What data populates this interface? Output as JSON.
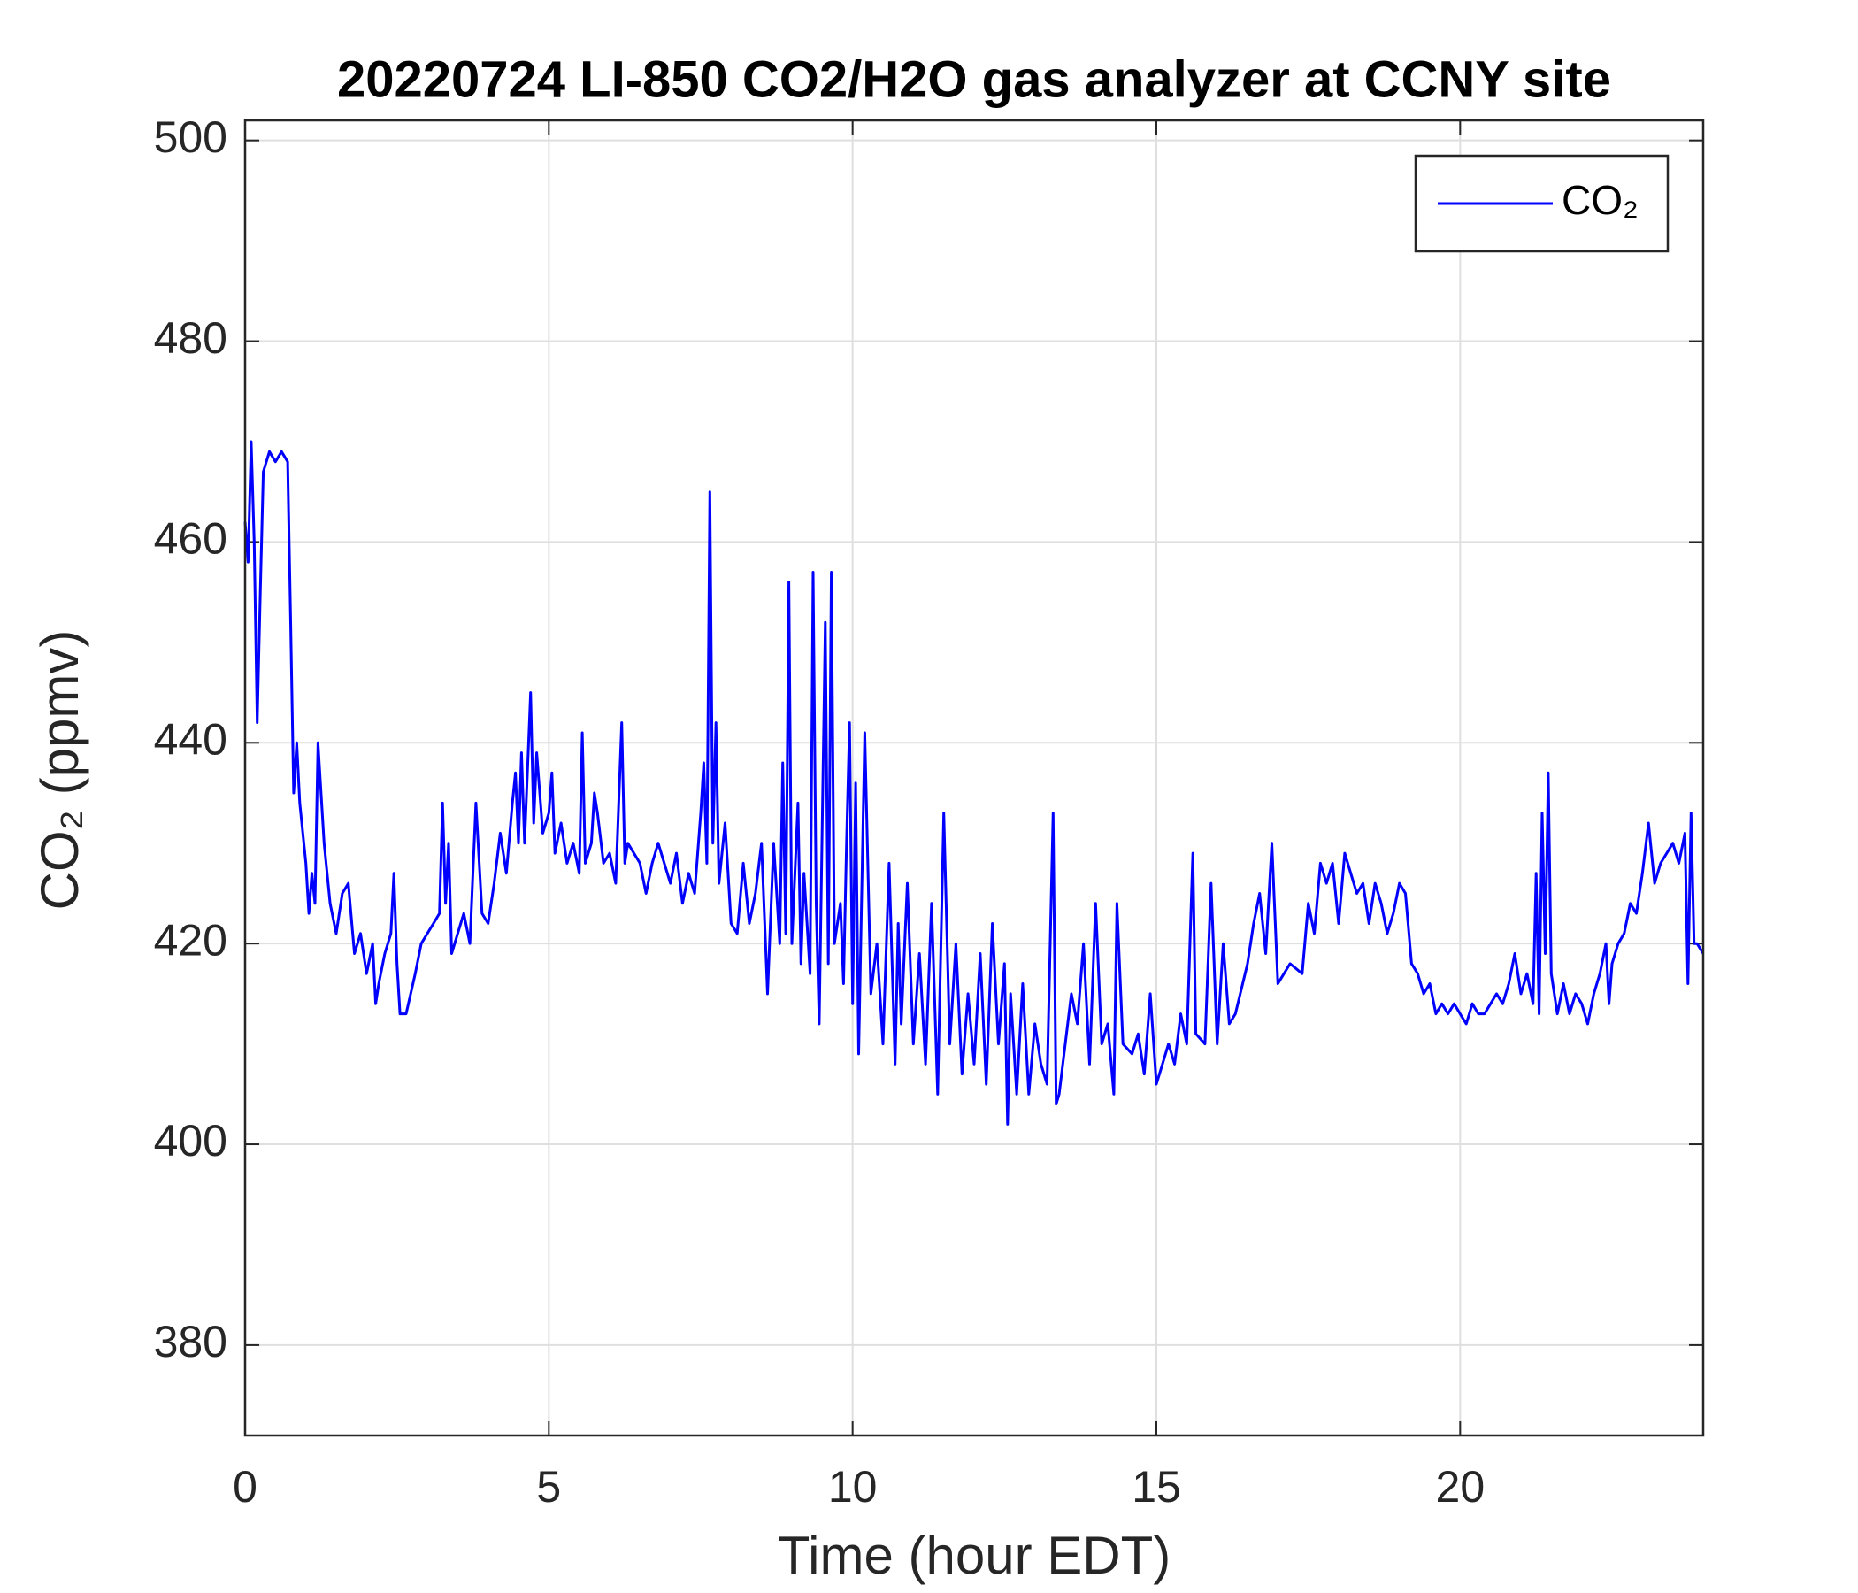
{
  "chart_data": {
    "type": "line",
    "title": "20220724 LI-850 CO2/H2O gas analyzer at CCNY site",
    "xlabel": "Time (hour EDT)",
    "ylabel": "CO₂ (ppmv)",
    "xlim": [
      0,
      24
    ],
    "ylim": [
      371,
      502
    ],
    "xticks": [
      0,
      5,
      10,
      15,
      20
    ],
    "yticks": [
      380,
      400,
      420,
      440,
      460,
      480,
      500
    ],
    "grid": true,
    "legend": "northeast",
    "x": [
      0,
      0.05,
      0.1,
      0.15,
      0.2,
      0.25,
      0.3,
      0.4,
      0.5,
      0.6,
      0.7,
      0.75,
      0.8,
      0.85,
      0.9,
      1.0,
      1.05,
      1.1,
      1.15,
      1.2,
      1.3,
      1.4,
      1.5,
      1.6,
      1.7,
      1.8,
      1.9,
      2.0,
      2.1,
      2.15,
      2.2,
      2.3,
      2.4,
      2.45,
      2.5,
      2.55,
      2.65,
      2.8,
      2.9,
      3.0,
      3.1,
      3.2,
      3.25,
      3.3,
      3.35,
      3.4,
      3.5,
      3.6,
      3.7,
      3.8,
      3.9,
      4.0,
      4.1,
      4.2,
      4.3,
      4.4,
      4.45,
      4.5,
      4.55,
      4.6,
      4.7,
      4.75,
      4.8,
      4.9,
      5.0,
      5.05,
      5.1,
      5.2,
      5.3,
      5.4,
      5.5,
      5.55,
      5.6,
      5.7,
      5.75,
      5.8,
      5.9,
      6.0,
      6.1,
      6.2,
      6.25,
      6.3,
      6.5,
      6.6,
      6.7,
      6.8,
      6.9,
      7.0,
      7.1,
      7.2,
      7.3,
      7.4,
      7.5,
      7.55,
      7.6,
      7.65,
      7.7,
      7.75,
      7.8,
      7.9,
      8.0,
      8.1,
      8.2,
      8.3,
      8.4,
      8.5,
      8.6,
      8.7,
      8.8,
      8.85,
      8.9,
      8.95,
      9.0,
      9.1,
      9.15,
      9.2,
      9.3,
      9.35,
      9.4,
      9.45,
      9.55,
      9.6,
      9.65,
      9.7,
      9.8,
      9.85,
      9.9,
      9.95,
      10.0,
      10.05,
      10.1,
      10.2,
      10.3,
      10.4,
      10.5,
      10.6,
      10.7,
      10.75,
      10.8,
      10.9,
      11.0,
      11.1,
      11.2,
      11.3,
      11.4,
      11.5,
      11.6,
      11.7,
      11.8,
      11.9,
      12.0,
      12.1,
      12.2,
      12.3,
      12.4,
      12.5,
      12.55,
      12.6,
      12.7,
      12.8,
      12.9,
      13.0,
      13.1,
      13.2,
      13.3,
      13.35,
      13.4,
      13.5,
      13.6,
      13.7,
      13.8,
      13.9,
      14.0,
      14.1,
      14.2,
      14.3,
      14.35,
      14.45,
      14.6,
      14.7,
      14.8,
      14.9,
      15.0,
      15.1,
      15.2,
      15.3,
      15.4,
      15.5,
      15.6,
      15.65,
      15.8,
      15.9,
      16.0,
      16.1,
      16.2,
      16.3,
      16.5,
      16.6,
      16.7,
      16.8,
      16.9,
      17.0,
      17.1,
      17.2,
      17.4,
      17.5,
      17.6,
      17.7,
      17.8,
      17.9,
      18.0,
      18.1,
      18.2,
      18.3,
      18.4,
      18.5,
      18.6,
      18.7,
      18.8,
      18.9,
      19.0,
      19.1,
      19.2,
      19.3,
      19.4,
      19.5,
      19.6,
      19.7,
      19.8,
      19.9,
      20.0,
      20.1,
      20.2,
      20.3,
      20.4,
      20.5,
      20.6,
      20.7,
      20.8,
      20.9,
      21.0,
      21.1,
      21.2,
      21.25,
      21.3,
      21.35,
      21.4,
      21.45,
      21.5,
      21.6,
      21.7,
      21.8,
      21.9,
      22.0,
      22.1,
      22.2,
      22.3,
      22.4,
      22.45,
      22.5,
      22.6,
      22.7,
      22.8,
      22.9,
      23.0,
      23.1,
      23.2,
      23.3,
      23.4,
      23.5,
      23.6,
      23.7,
      23.75,
      23.8,
      23.85,
      23.9,
      24.0
    ],
    "series": [
      {
        "name": "CO₂",
        "color": "#0000ff",
        "values": [
          462,
          458,
          470,
          460,
          442,
          455,
          467,
          469,
          468,
          469,
          468,
          452,
          435,
          440,
          434,
          428,
          423,
          427,
          424,
          440,
          430,
          424,
          421,
          425,
          426,
          419,
          421,
          417,
          420,
          414,
          416,
          419,
          421,
          427,
          418,
          413,
          413,
          417,
          420,
          421,
          422,
          423,
          434,
          424,
          430,
          419,
          421,
          423,
          420,
          434,
          423,
          422,
          426,
          431,
          427,
          434,
          437,
          430,
          439,
          430,
          445,
          432,
          439,
          431,
          433,
          437,
          429,
          432,
          428,
          430,
          427,
          441,
          428,
          430,
          435,
          433,
          428,
          429,
          426,
          442,
          428,
          430,
          428,
          425,
          428,
          430,
          428,
          426,
          429,
          424,
          427,
          425,
          433,
          438,
          428,
          465,
          430,
          442,
          426,
          432,
          422,
          421,
          428,
          422,
          425,
          430,
          415,
          430,
          420,
          438,
          421,
          456,
          420,
          434,
          418,
          427,
          417,
          457,
          424,
          412,
          452,
          418,
          457,
          420,
          424,
          416,
          430,
          442,
          414,
          436,
          409,
          441,
          415,
          420,
          410,
          428,
          408,
          422,
          412,
          426,
          410,
          419,
          408,
          424,
          405,
          433,
          410,
          420,
          407,
          415,
          408,
          419,
          406,
          422,
          410,
          418,
          402,
          415,
          405,
          416,
          405,
          412,
          408,
          406,
          433,
          404,
          405,
          410,
          415,
          412,
          420,
          408,
          424,
          410,
          412,
          405,
          424,
          410,
          409,
          411,
          407,
          415,
          406,
          408,
          410,
          408,
          413,
          410,
          429,
          411,
          410,
          426,
          410,
          420,
          412,
          413,
          418,
          422,
          425,
          419,
          430,
          416,
          417,
          418,
          417,
          424,
          421,
          428,
          426,
          428,
          422,
          429,
          427,
          425,
          426,
          422,
          426,
          424,
          421,
          423,
          426,
          425,
          418,
          417,
          415,
          416,
          413,
          414,
          413,
          414,
          413,
          412,
          414,
          413,
          413,
          414,
          415,
          414,
          416,
          419,
          415,
          417,
          414,
          427,
          413,
          433,
          419,
          437,
          417,
          413,
          416,
          413,
          415,
          414,
          412,
          415,
          417,
          420,
          414,
          418,
          420,
          421,
          424,
          423,
          427,
          432,
          426,
          428,
          429,
          430,
          428,
          431,
          416,
          433,
          420,
          420,
          419
        ]
      }
    ]
  }
}
